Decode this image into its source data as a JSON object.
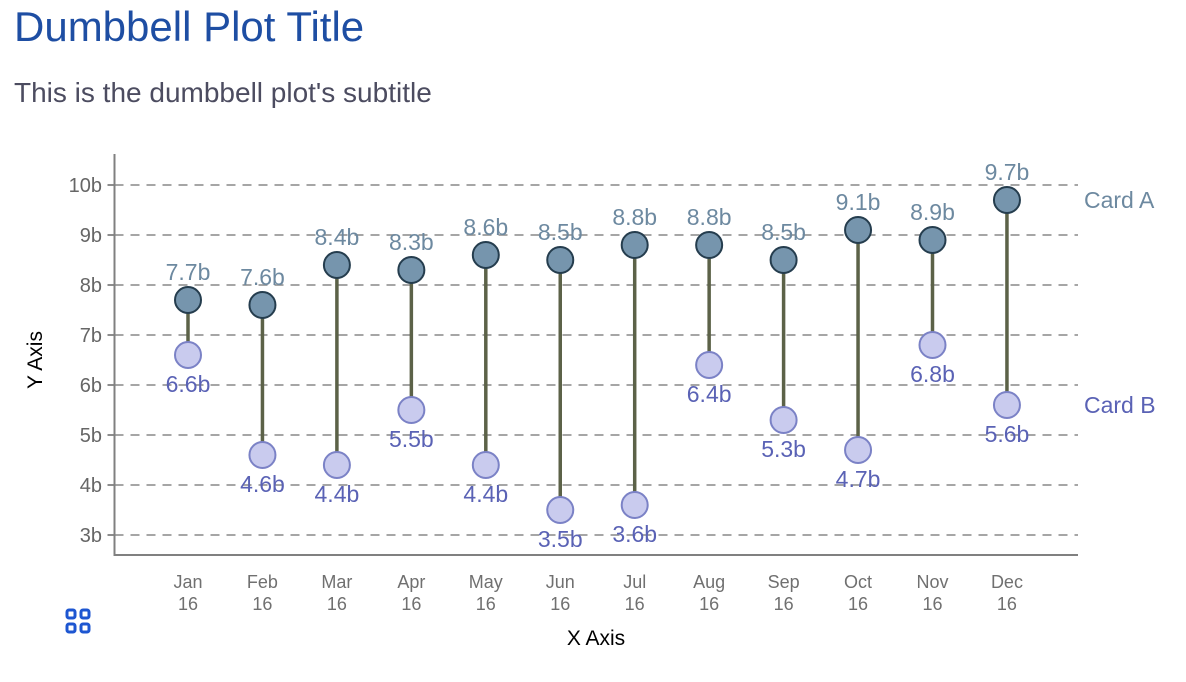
{
  "title": "Dumbbell Plot Title",
  "subtitle": "This is the dumbbell plot's subtitle",
  "colors": {
    "title": "#1e4ea3",
    "subtitle": "#4c4c60",
    "card_a_fill": "#7695ad",
    "card_a_stroke": "#253d4e",
    "card_a_label": "#6d89a0",
    "card_b_fill": "#c9cbee",
    "card_b_stroke": "#7b82c6",
    "card_b_label": "#5a62b5",
    "connector": "#5c6248",
    "grid": "#999999",
    "axis": "#808080",
    "tick_text": "#666666",
    "month_text": "#707070",
    "axis_title": "#000000",
    "grid_icon": "#1d56d1"
  },
  "chart_data": {
    "type": "dumbbell",
    "months": [
      "Jan",
      "Feb",
      "Mar",
      "Apr",
      "May",
      "Jun",
      "Jul",
      "Aug",
      "Sep",
      "Oct",
      "Nov",
      "Dec"
    ],
    "year_label": "16",
    "series": [
      {
        "name": "Card A",
        "values": [
          7.7,
          7.6,
          8.4,
          8.3,
          8.6,
          8.5,
          8.8,
          8.8,
          8.5,
          9.1,
          8.9,
          9.7
        ]
      },
      {
        "name": "Card B",
        "values": [
          6.6,
          4.6,
          4.4,
          5.5,
          4.4,
          3.5,
          3.6,
          6.4,
          5.3,
          4.7,
          6.8,
          5.6
        ]
      }
    ],
    "value_suffix": "b",
    "xlabel": "X Axis",
    "ylabel": "Y Axis",
    "yticks": [
      10,
      9,
      8,
      7,
      6,
      5,
      4,
      3
    ],
    "ytick_suffix": "b",
    "ylim": [
      3,
      10
    ],
    "grid": "dashed",
    "legend_position": "right"
  }
}
